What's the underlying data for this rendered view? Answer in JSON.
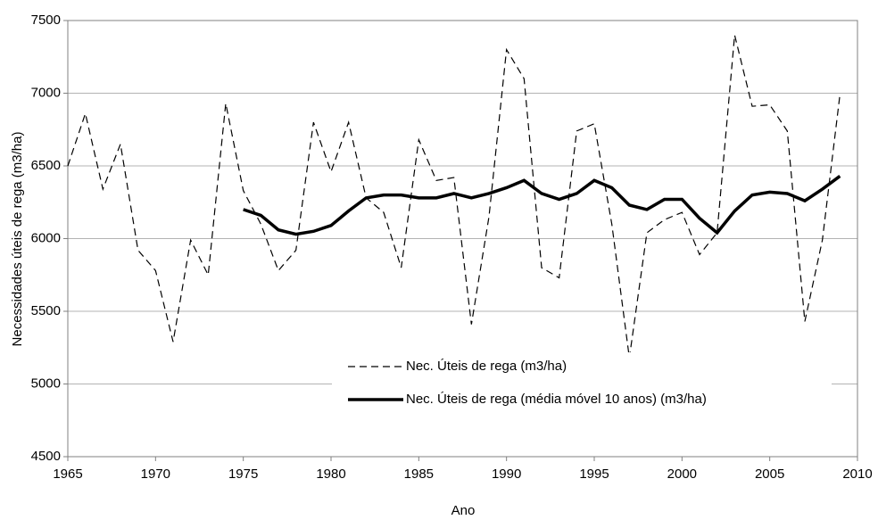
{
  "chart_data": {
    "type": "line",
    "x_label": "Ano",
    "y_label": "Necessidades úteis de rega (m3/ha)",
    "x": [
      1965,
      1966,
      1967,
      1968,
      1969,
      1970,
      1971,
      1972,
      1973,
      1974,
      1975,
      1976,
      1977,
      1978,
      1979,
      1980,
      1981,
      1982,
      1983,
      1984,
      1985,
      1986,
      1987,
      1988,
      1989,
      1990,
      1991,
      1992,
      1993,
      1994,
      1995,
      1996,
      1997,
      1998,
      1999,
      2000,
      2001,
      2002,
      2003,
      2004,
      2005,
      2006,
      2007,
      2008,
      2009
    ],
    "series": [
      {
        "name": "Nec. Úteis de rega (m3/ha)",
        "color": "#000000",
        "dash": true,
        "values": [
          6500,
          6860,
          6340,
          6650,
          5920,
          5780,
          5290,
          5990,
          5750,
          6930,
          6330,
          6100,
          5780,
          5920,
          6800,
          6460,
          6800,
          6280,
          6180,
          5800,
          6680,
          6400,
          6420,
          5410,
          6150,
          7300,
          7100,
          5800,
          5730,
          6740,
          6790,
          6100,
          5180,
          6040,
          6130,
          6180,
          5890,
          6040,
          7400,
          6910,
          6920,
          6740,
          5430,
          5990,
          6990
        ]
      },
      {
        "name": "Nec. Úteis de rega (média móvel 10 anos) (m3/ha)",
        "color": "#000000",
        "dash": false,
        "values": [
          null,
          null,
          null,
          null,
          null,
          null,
          null,
          null,
          null,
          null,
          6200,
          6160,
          6060,
          6030,
          6050,
          6090,
          6190,
          6280,
          6300,
          6300,
          6280,
          6280,
          6310,
          6280,
          6310,
          6350,
          6400,
          6310,
          6270,
          6310,
          6400,
          6350,
          6230,
          6200,
          6270,
          6270,
          6140,
          6040,
          6190,
          6300,
          6320,
          6310,
          6260,
          6340,
          6430
        ]
      }
    ],
    "xlim": [
      1965,
      2010
    ],
    "xticks": [
      1965,
      1970,
      1975,
      1980,
      1985,
      1990,
      1995,
      2000,
      2005,
      2010
    ],
    "ylim": [
      4500,
      7500
    ],
    "yticks": [
      4500,
      5000,
      5500,
      6000,
      6500,
      7000,
      7500
    ],
    "grid": true
  }
}
